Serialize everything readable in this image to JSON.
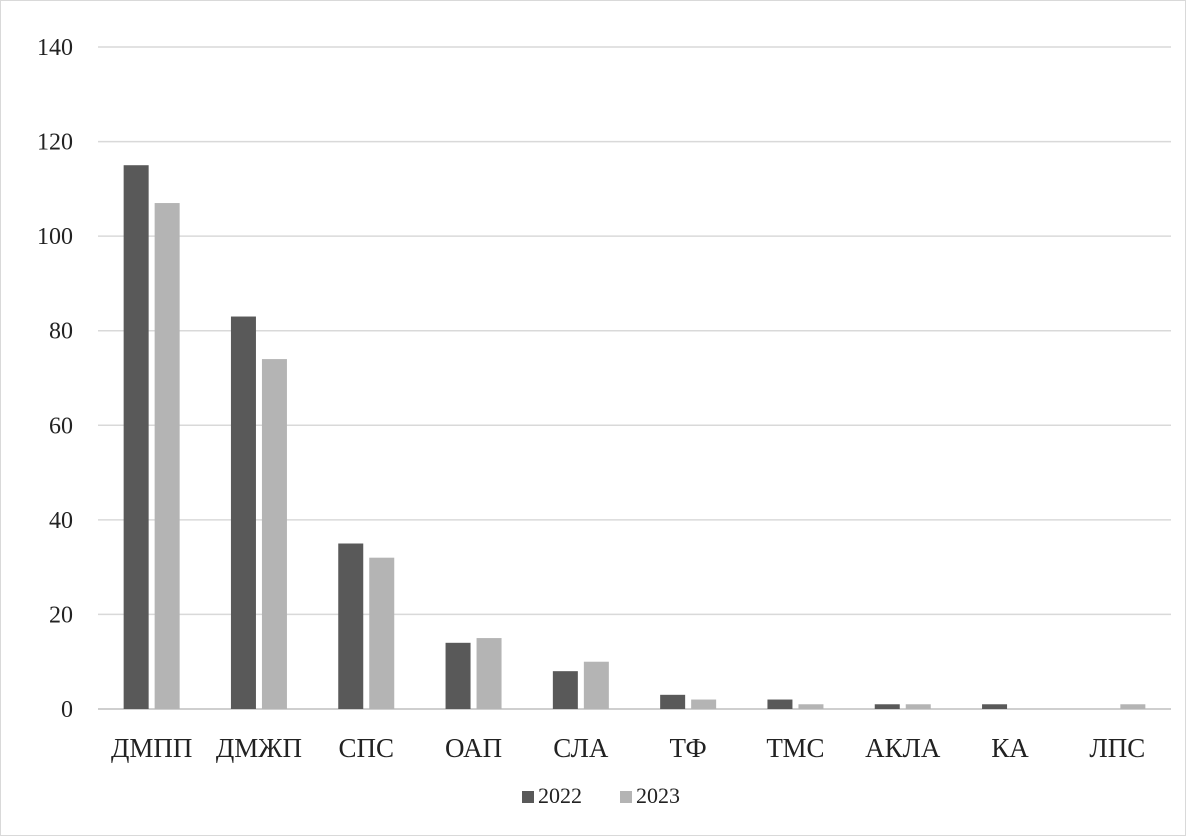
{
  "chart_data": {
    "type": "bar",
    "title": "",
    "xlabel": "",
    "ylabel": "",
    "categories": [
      "ДМПП",
      "ДМЖП",
      "СПС",
      "ОАП",
      "СЛА",
      "ТФ",
      "ТМС",
      "АКЛА",
      "КА",
      "ЛПС"
    ],
    "series": [
      {
        "name": "2022",
        "color": "#595959",
        "values": [
          115,
          83,
          35,
          14,
          8,
          3,
          2,
          1,
          1,
          0
        ]
      },
      {
        "name": "2023",
        "color": "#b4b4b4",
        "values": [
          107,
          74,
          32,
          15,
          10,
          2,
          1,
          1,
          0,
          1
        ]
      }
    ],
    "ylim": [
      0,
      140
    ],
    "yticks": [
      0,
      20,
      40,
      60,
      80,
      100,
      120,
      140
    ],
    "grid": true,
    "legend": "bottom"
  }
}
